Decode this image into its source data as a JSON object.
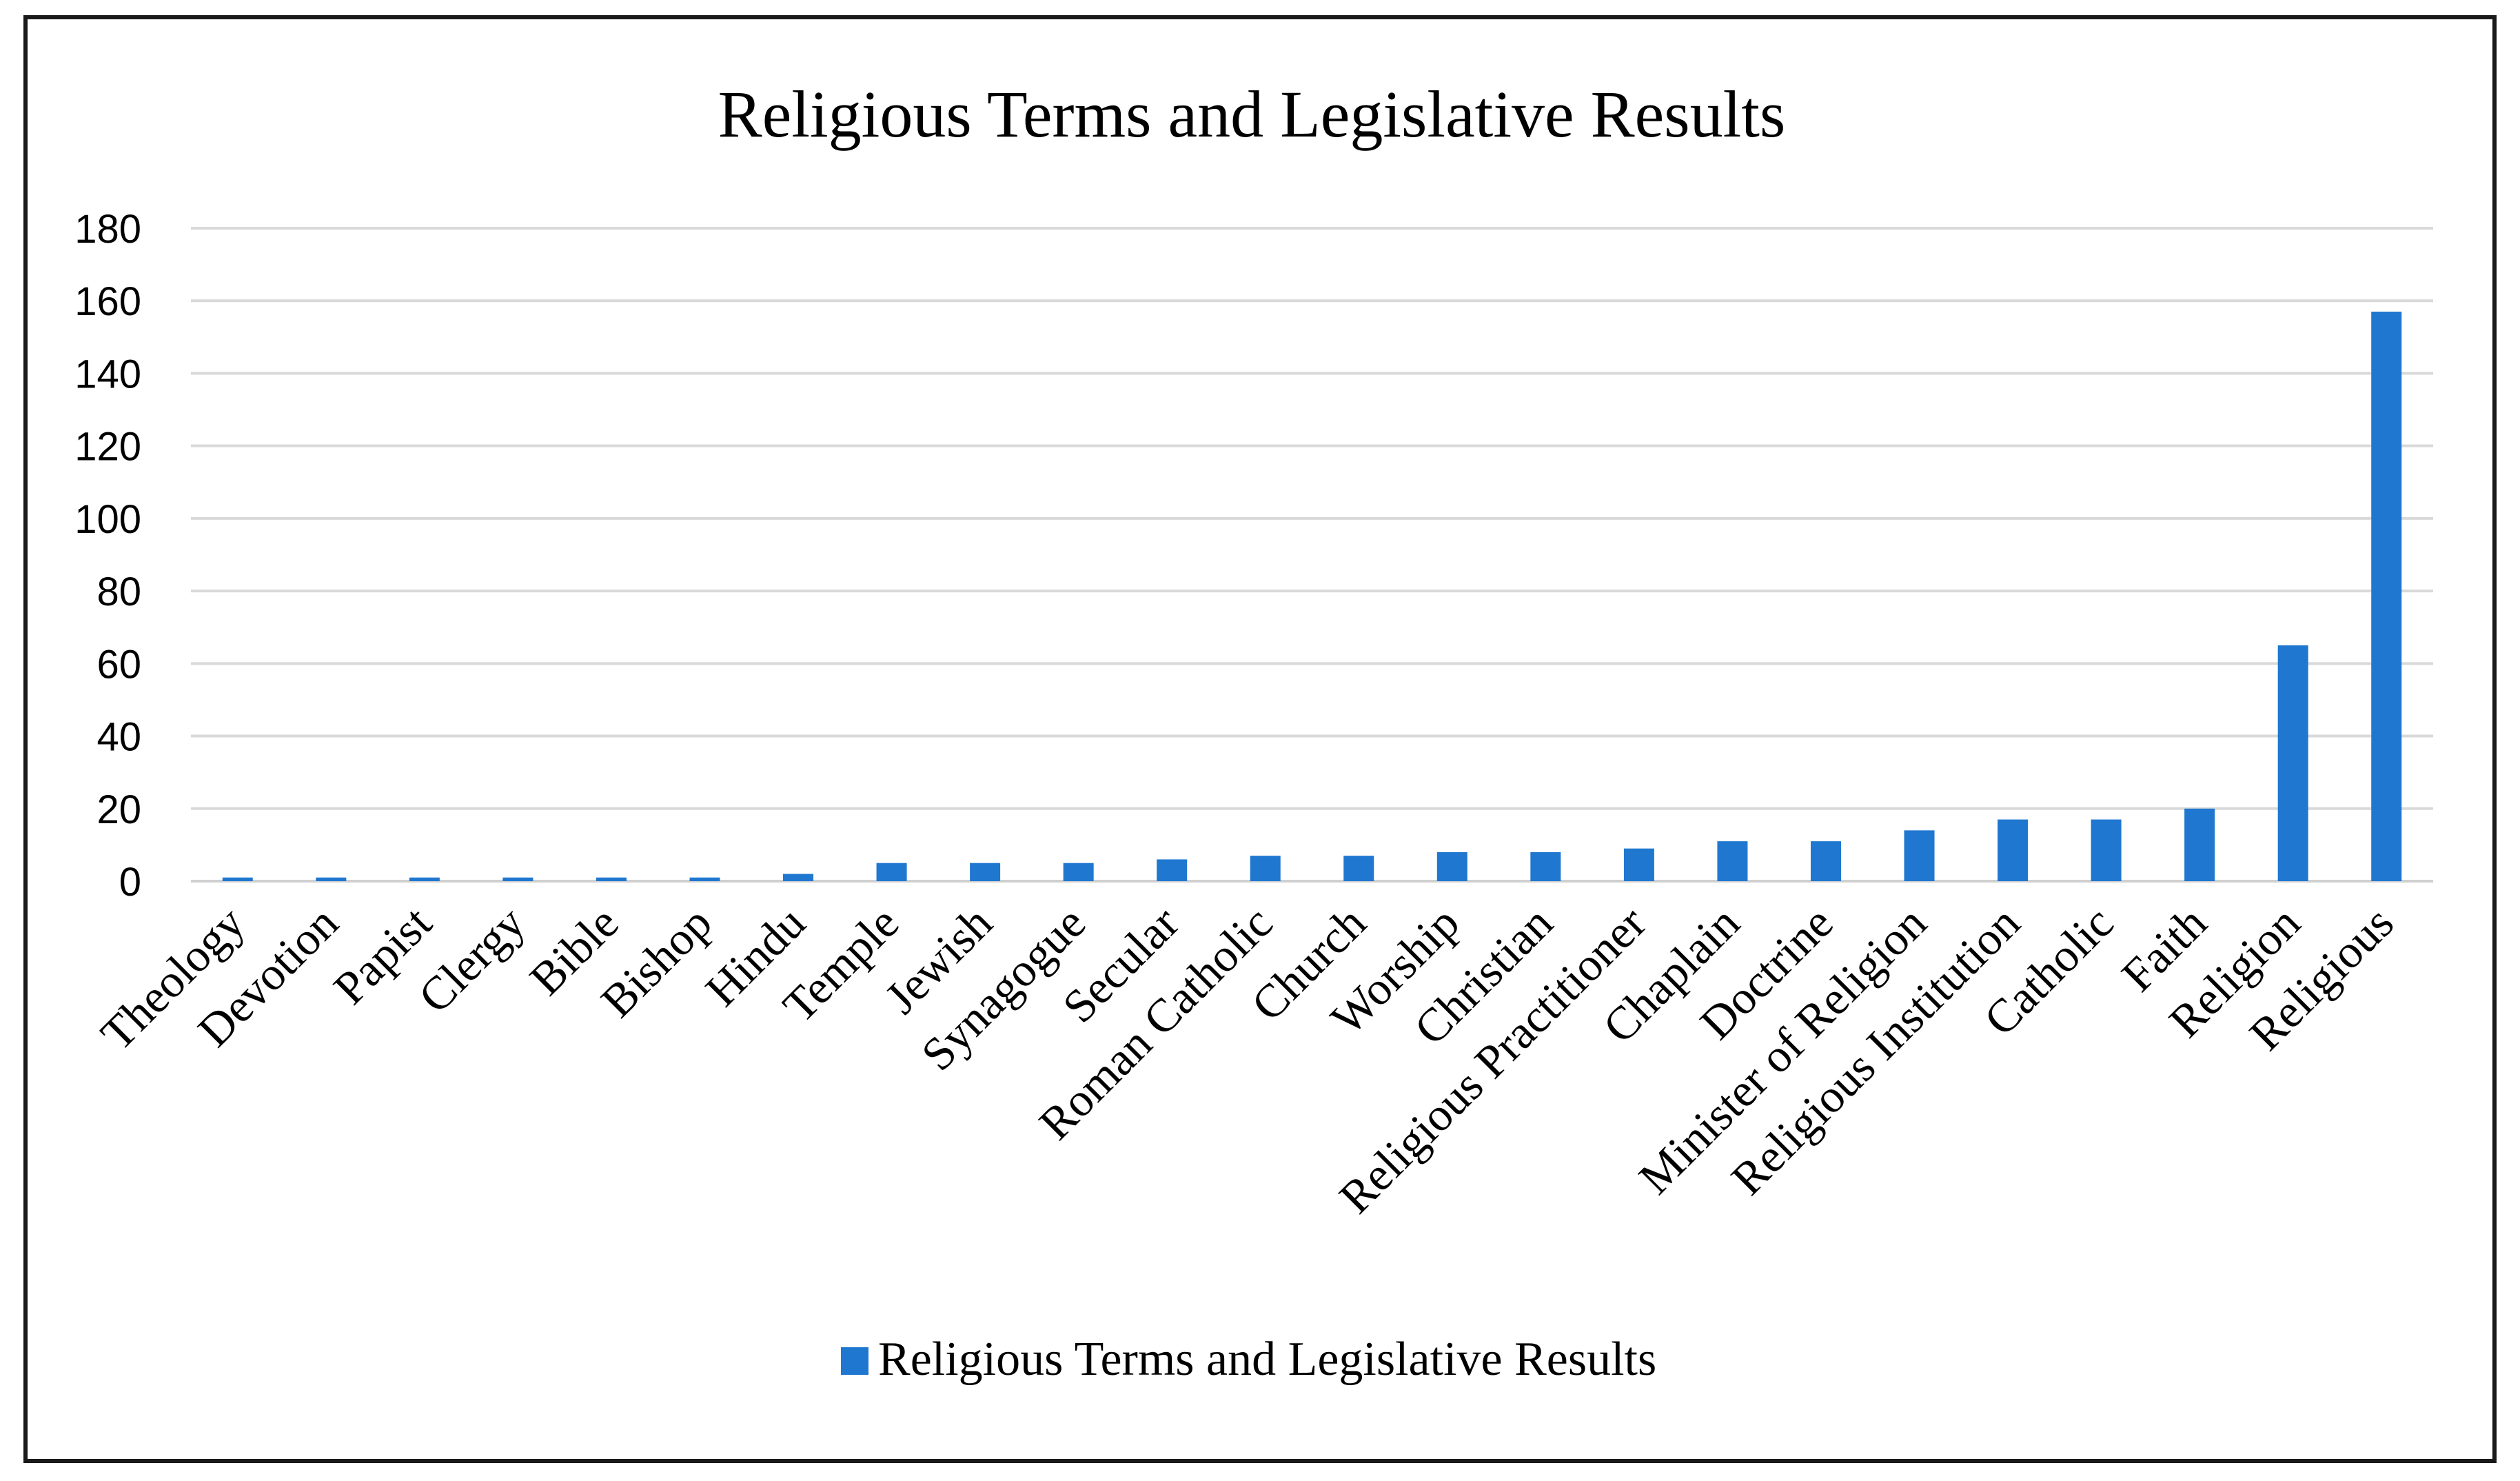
{
  "chart_data": {
    "type": "bar",
    "title": "Religious Terms and Legislative Results",
    "xlabel": "",
    "ylabel": "",
    "ylim": [
      0,
      180
    ],
    "yticks": [
      0,
      20,
      40,
      60,
      80,
      100,
      120,
      140,
      160,
      180
    ],
    "grid": true,
    "legend_position": "bottom",
    "categories": [
      "Theology",
      "Devotion",
      "Papist",
      "Clergy",
      "Bible",
      "Bishop",
      "Hindu",
      "Temple",
      "Jewish",
      "Synagogue",
      "Secular",
      "Roman Catholic",
      "Church",
      "Worship",
      "Christian",
      "Religious Practitioner",
      "Chaplain",
      "Doctrine",
      "Minister of Religion",
      "Religious Institution",
      "Catholic",
      "Faith",
      "Religion",
      "Religious"
    ],
    "series": [
      {
        "name": "Religious Terms and Legislative Results",
        "color": "#1f77d0",
        "values": [
          1,
          1,
          1,
          1,
          1,
          1,
          2,
          5,
          5,
          5,
          6,
          7,
          7,
          8,
          8,
          9,
          11,
          11,
          14,
          17,
          17,
          20,
          65,
          157
        ]
      }
    ]
  }
}
